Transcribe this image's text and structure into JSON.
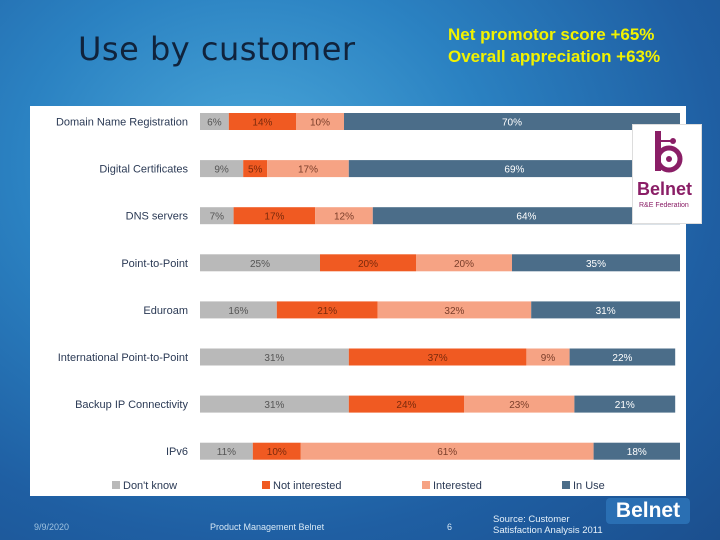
{
  "slide": {
    "title": "Use by customer",
    "nps_line1": "Net promotor score +65%",
    "nps_line2": "Overall appreciation +63%",
    "footer_date": "9/9/2020",
    "footer_center": "Product Management Belnet",
    "page_number": "6",
    "source": "Source: Customer Satisfaction Analysis 2011",
    "logo_text": "Belnet",
    "logo_subtext": "R&E Federation",
    "footer_logo_text": "Belnet"
  },
  "colors": {
    "dont_know": "#b9b9b9",
    "not_interested": "#f05a22",
    "interested": "#f6a384",
    "in_use": "#4b6d89",
    "logo_purple": "#8a1e66"
  },
  "chart_data": {
    "type": "bar",
    "orientation": "horizontal",
    "stacked": true,
    "categories": [
      "Domain Name Registration",
      "Digital Certificates",
      "DNS servers",
      "Point-to-Point",
      "Eduroam",
      "International Point-to-Point",
      "Backup IP Connectivity",
      "IPv6"
    ],
    "series": [
      {
        "name": "Don't know",
        "values": [
          6,
          9,
          7,
          25,
          16,
          31,
          31,
          11
        ]
      },
      {
        "name": "Not interested",
        "values": [
          14,
          5,
          17,
          20,
          21,
          37,
          24,
          10
        ]
      },
      {
        "name": "Interested",
        "values": [
          10,
          17,
          12,
          20,
          32,
          9,
          23,
          61
        ]
      },
      {
        "name": "In Use",
        "values": [
          70,
          69,
          64,
          35,
          31,
          22,
          21,
          18
        ]
      }
    ],
    "label_format": "{v}%",
    "legend_position": "bottom",
    "xlim": [
      0,
      100
    ]
  }
}
